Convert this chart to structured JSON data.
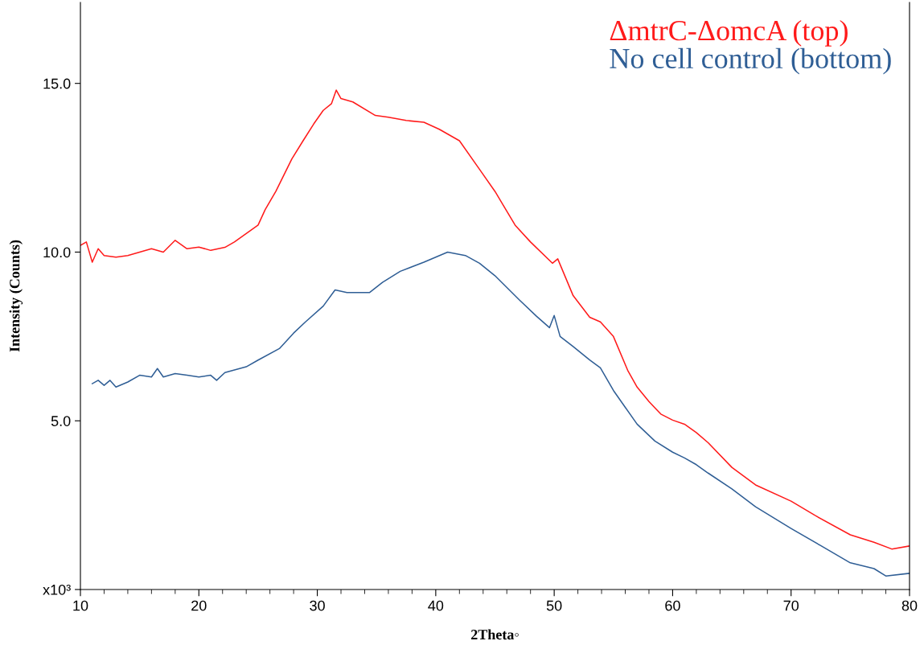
{
  "chart_data": {
    "type": "line",
    "xlabel": "2Theta◦",
    "ylabel": "Intensity (Counts)",
    "xlim": [
      10,
      80
    ],
    "xticks": [
      10,
      20,
      30,
      40,
      50,
      60,
      70,
      80
    ],
    "ylim": [
      0,
      17.4
    ],
    "yticks": [
      {
        "value": 0,
        "label": "x10³"
      },
      {
        "value": 5,
        "label": "5.0"
      },
      {
        "value": 10,
        "label": "10.0"
      },
      {
        "value": 15,
        "label": "15.0"
      }
    ],
    "grid": false,
    "legend": "top right",
    "marker": "none",
    "line_style": "solid",
    "series": [
      {
        "name": "ΔmtrC-ΔomcA (top)",
        "color": "#ff1a1a",
        "x": [
          10,
          10.5,
          11,
          11.5,
          12,
          13,
          14,
          15,
          16,
          17,
          18,
          19,
          20,
          21,
          22.2,
          23,
          24,
          25,
          25.6,
          26.5,
          27.85,
          28.8,
          29.7,
          30.5,
          31.2,
          31.6,
          32,
          33,
          34.9,
          36,
          37.5,
          39,
          40.3,
          42,
          43.7,
          45,
          46.7,
          48,
          49.85,
          50.3,
          51.6,
          53,
          53.9,
          55,
          56.2,
          57,
          58,
          59,
          60,
          61,
          62,
          63,
          65,
          67,
          70,
          72,
          75,
          77,
          78.5,
          80
        ],
        "values": [
          10.2,
          10.3,
          9.7,
          10.1,
          9.9,
          9.85,
          9.9,
          10.0,
          10.1,
          10.0,
          10.35,
          10.1,
          10.15,
          10.05,
          10.14,
          10.3,
          10.55,
          10.8,
          11.26,
          11.8,
          12.76,
          13.3,
          13.8,
          14.2,
          14.4,
          14.8,
          14.55,
          14.45,
          14.05,
          14.0,
          13.9,
          13.85,
          13.64,
          13.3,
          12.45,
          11.8,
          10.8,
          10.3,
          9.67,
          9.8,
          8.71,
          8.07,
          7.93,
          7.5,
          6.5,
          6.0,
          5.57,
          5.2,
          5.02,
          4.9,
          4.65,
          4.35,
          3.62,
          3.1,
          2.62,
          2.2,
          1.62,
          1.4,
          1.2,
          1.29
        ]
      },
      {
        "name": "No cell control (bottom)",
        "color": "#2f5e95",
        "x": [
          11,
          11.5,
          12,
          12.5,
          13,
          14,
          15,
          16,
          16.5,
          17,
          18,
          19,
          20,
          21,
          21.5,
          22.2,
          24,
          25,
          26.8,
          28,
          29,
          30.5,
          31.5,
          32.5,
          34.4,
          35.5,
          37,
          39,
          41,
          42.5,
          43.7,
          45,
          47.1,
          48.5,
          49.6,
          50,
          50.5,
          51.6,
          53,
          53.9,
          55,
          56,
          57,
          58.5,
          60,
          61,
          62,
          63,
          65,
          67,
          70,
          72.5,
          75,
          77,
          78,
          80
        ],
        "values": [
          6.1,
          6.2,
          6.05,
          6.2,
          6.0,
          6.15,
          6.35,
          6.3,
          6.55,
          6.3,
          6.4,
          6.35,
          6.3,
          6.35,
          6.2,
          6.43,
          6.6,
          6.8,
          7.14,
          7.6,
          7.93,
          8.4,
          8.88,
          8.8,
          8.8,
          9.1,
          9.43,
          9.7,
          10.0,
          9.9,
          9.67,
          9.3,
          8.57,
          8.1,
          7.76,
          8.12,
          7.5,
          7.2,
          6.8,
          6.57,
          5.9,
          5.4,
          4.9,
          4.4,
          4.07,
          3.9,
          3.7,
          3.45,
          2.98,
          2.45,
          1.81,
          1.3,
          0.79,
          0.62,
          0.4,
          0.48
        ]
      }
    ]
  }
}
